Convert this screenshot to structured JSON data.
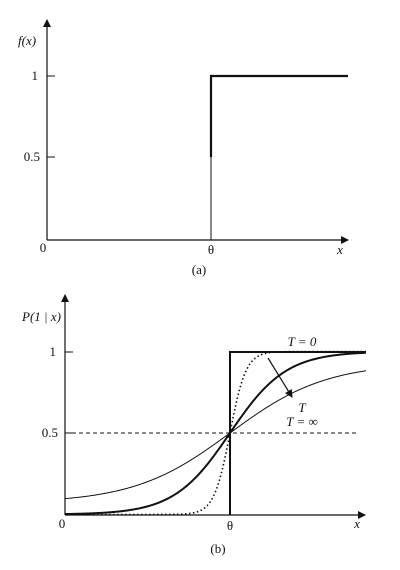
{
  "panels": [
    {
      "caption": "(a)",
      "y_label": "f(x)",
      "x_label": "x",
      "origin": "0",
      "theta": "θ",
      "yticks": [
        "1",
        "0.5"
      ]
    },
    {
      "caption": "(b)",
      "y_label": "P(1 | x)",
      "x_label": "x",
      "origin": "0",
      "theta": "θ",
      "yticks": [
        "1",
        "0.5"
      ],
      "annotations": [
        "T = 0",
        "T",
        "T = ∞"
      ]
    }
  ]
}
